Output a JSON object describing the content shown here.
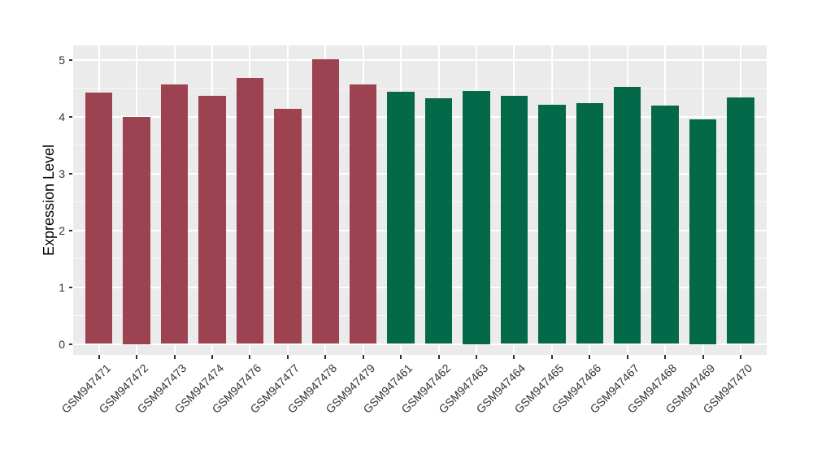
{
  "figure": {
    "background": "#FFFFFF",
    "panel_background": "#EBEBEB",
    "gridline_color": "#FFFFFF",
    "tick_mark_color": "#333333",
    "tick_label_color": "#333333"
  },
  "chart_data": {
    "type": "bar",
    "title": "",
    "xlabel": "",
    "ylabel": "Expression Level",
    "legend": "none",
    "grid": "white major+minor horizontal lines, white vertical line at each category center, on gray panel",
    "ylim": [
      0,
      5.25
    ],
    "yticks": [
      0,
      1,
      2,
      3,
      4,
      5
    ],
    "y_minor_ticks": [
      0.5,
      1.5,
      2.5,
      3.5,
      4.5
    ],
    "categories": [
      "GSM947471",
      "GSM947472",
      "GSM947473",
      "GSM947474",
      "GSM947476",
      "GSM947477",
      "GSM947478",
      "GSM947479",
      "GSM947461",
      "GSM947462",
      "GSM947463",
      "GSM947464",
      "GSM947465",
      "GSM947466",
      "GSM947467",
      "GSM947468",
      "GSM947469",
      "GSM947470"
    ],
    "values": [
      4.42,
      4.0,
      4.57,
      4.36,
      4.68,
      4.13,
      5.01,
      4.56,
      4.43,
      4.32,
      4.45,
      4.37,
      4.21,
      4.24,
      4.52,
      4.19,
      3.95,
      4.33
    ],
    "bar_groups": [
      "A",
      "A",
      "A",
      "A",
      "A",
      "A",
      "A",
      "A",
      "B",
      "B",
      "B",
      "B",
      "B",
      "B",
      "B",
      "B",
      "B",
      "B"
    ],
    "group_colors": {
      "A": "#9D4251",
      "B": "#046948"
    }
  }
}
